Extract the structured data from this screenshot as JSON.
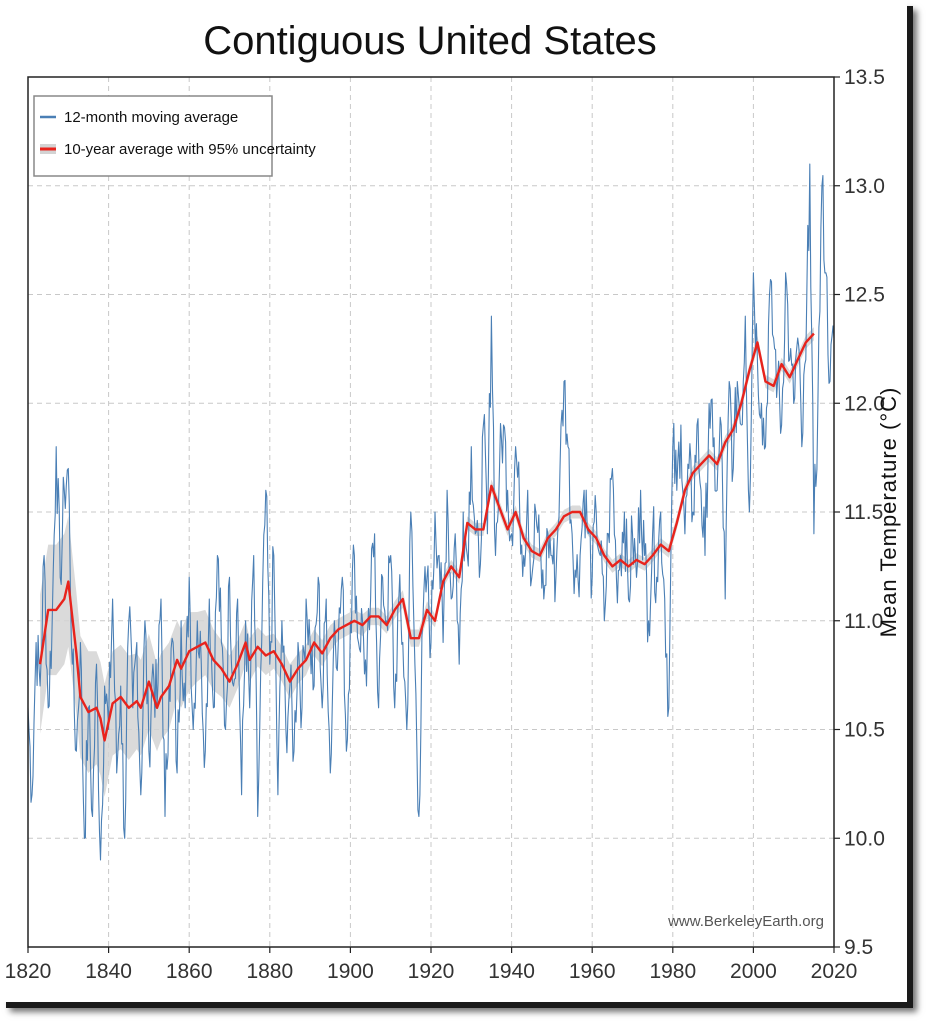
{
  "chart_data": {
    "type": "line",
    "title": "Contiguous United States",
    "xlabel": "",
    "ylabel": "Mean Temperature (°C)",
    "xlim": [
      1820,
      2020
    ],
    "ylim": [
      9.5,
      13.5
    ],
    "x_ticks": [
      1820,
      1840,
      1860,
      1880,
      1900,
      1920,
      1940,
      1960,
      1980,
      2000,
      2020
    ],
    "y_ticks": [
      "9.5",
      "10.0",
      "10.5",
      "11.0",
      "11.5",
      "12.0",
      "12.5",
      "13.0",
      "13.5"
    ],
    "y_axis_side": "right",
    "grid": true,
    "legend_position": "top-left",
    "credit": "www.BerkeleyEarth.org",
    "colors": {
      "moving_average": "#4a7fb5",
      "ten_year": "#e8231c",
      "uncertainty": "#d3d3d3"
    },
    "series": [
      {
        "name": "12-month moving average",
        "style": "thin-line",
        "x": [
          1820,
          1821,
          1822,
          1823,
          1824,
          1825,
          1826,
          1827,
          1828,
          1829,
          1830,
          1831,
          1832,
          1833,
          1834,
          1835,
          1836,
          1837,
          1838,
          1839,
          1840,
          1841,
          1842,
          1843,
          1844,
          1845,
          1846,
          1847,
          1848,
          1849,
          1850,
          1851,
          1852,
          1853,
          1854,
          1855,
          1856,
          1857,
          1858,
          1859,
          1860,
          1861,
          1862,
          1863,
          1864,
          1865,
          1866,
          1867,
          1868,
          1869,
          1870,
          1871,
          1872,
          1873,
          1874,
          1875,
          1876,
          1877,
          1878,
          1879,
          1880,
          1881,
          1882,
          1883,
          1884,
          1885,
          1886,
          1887,
          1888,
          1889,
          1890,
          1891,
          1892,
          1893,
          1894,
          1895,
          1896,
          1897,
          1898,
          1899,
          1900,
          1901,
          1902,
          1903,
          1904,
          1905,
          1906,
          1907,
          1908,
          1909,
          1910,
          1911,
          1912,
          1913,
          1914,
          1915,
          1916,
          1917,
          1918,
          1919,
          1920,
          1921,
          1922,
          1923,
          1924,
          1925,
          1926,
          1927,
          1928,
          1929,
          1930,
          1931,
          1932,
          1933,
          1934,
          1935,
          1936,
          1937,
          1938,
          1939,
          1940,
          1941,
          1942,
          1943,
          1944,
          1945,
          1946,
          1947,
          1948,
          1949,
          1950,
          1951,
          1952,
          1953,
          1954,
          1955,
          1956,
          1957,
          1958,
          1959,
          1960,
          1961,
          1962,
          1963,
          1964,
          1965,
          1966,
          1967,
          1968,
          1969,
          1970,
          1971,
          1972,
          1973,
          1974,
          1975,
          1976,
          1977,
          1978,
          1979,
          1980,
          1981,
          1982,
          1983,
          1984,
          1985,
          1986,
          1987,
          1988,
          1989,
          1990,
          1991,
          1992,
          1993,
          1994,
          1995,
          1996,
          1997,
          1998,
          1999,
          2000,
          2001,
          2002,
          2003,
          2004,
          2005,
          2006,
          2007,
          2008,
          2009,
          2010,
          2011,
          2012,
          2013,
          2014,
          2015,
          2016,
          2017,
          2018,
          2019,
          2020
        ],
        "values": [
          10.6,
          10.2,
          10.9,
          10.7,
          11.3,
          10.6,
          11.0,
          11.8,
          11.2,
          11.6,
          11.7,
          10.8,
          10.4,
          10.9,
          10.0,
          10.6,
          10.1,
          10.8,
          9.9,
          10.7,
          10.5,
          11.1,
          10.3,
          10.7,
          10.0,
          11.0,
          10.6,
          10.9,
          10.2,
          11.0,
          10.4,
          10.8,
          10.6,
          11.1,
          10.1,
          10.7,
          10.9,
          10.3,
          11.0,
          10.6,
          11.2,
          10.5,
          11.0,
          10.8,
          10.4,
          11.1,
          10.6,
          11.3,
          10.9,
          10.5,
          11.2,
          10.7,
          11.1,
          10.2,
          11.0,
          10.6,
          11.3,
          10.1,
          10.9,
          11.6,
          10.8,
          11.3,
          10.2,
          11.0,
          10.5,
          10.7,
          10.4,
          10.9,
          10.6,
          11.1,
          10.9,
          10.7,
          11.2,
          10.6,
          11.1,
          10.3,
          11.0,
          10.9,
          11.2,
          10.4,
          11.0,
          11.3,
          10.9,
          11.0,
          10.7,
          11.1,
          11.4,
          10.6,
          11.2,
          11.0,
          11.3,
          10.6,
          11.1,
          10.9,
          10.5,
          11.5,
          10.8,
          10.1,
          11.0,
          11.2,
          10.9,
          11.5,
          11.3,
          10.9,
          11.6,
          11.1,
          11.4,
          10.8,
          11.5,
          11.3,
          11.8,
          11.4,
          11.2,
          11.9,
          11.4,
          12.4,
          11.3,
          11.7,
          11.9,
          11.6,
          11.4,
          11.8,
          11.5,
          11.3,
          11.6,
          11.2,
          11.5,
          11.3,
          11.1,
          11.4,
          11.3,
          11.2,
          11.7,
          12.1,
          11.8,
          11.4,
          11.2,
          11.3,
          11.6,
          11.4,
          11.2,
          11.5,
          11.3,
          11.0,
          11.4,
          11.7,
          11.2,
          11.3,
          11.5,
          11.1,
          11.4,
          11.2,
          11.6,
          11.3,
          11.0,
          11.4,
          11.2,
          11.5,
          11.1,
          10.6,
          11.8,
          11.6,
          11.9,
          11.4,
          11.7,
          11.5,
          11.9,
          11.6,
          11.3,
          12.0,
          11.8,
          11.6,
          11.9,
          11.1,
          12.1,
          11.7,
          12.1,
          11.9,
          12.4,
          11.5,
          12.6,
          12.2,
          12.0,
          11.8,
          12.5,
          12.3,
          12.1,
          11.9,
          12.6,
          12.2,
          12.0,
          12.3,
          11.8,
          12.2,
          13.1,
          11.4,
          12.0,
          13.0,
          12.6,
          12.1,
          12.3
        ]
      },
      {
        "name": "10-year average with 95% uncertainty",
        "style": "thick-line-with-band",
        "x": [
          1823,
          1825,
          1827,
          1829,
          1830,
          1832,
          1833,
          1835,
          1837,
          1838,
          1839,
          1841,
          1843,
          1845,
          1847,
          1848,
          1850,
          1852,
          1853,
          1855,
          1857,
          1858,
          1860,
          1862,
          1864,
          1866,
          1868,
          1870,
          1872,
          1874,
          1875,
          1877,
          1879,
          1881,
          1883,
          1885,
          1887,
          1889,
          1891,
          1893,
          1895,
          1897,
          1899,
          1901,
          1903,
          1905,
          1907,
          1909,
          1911,
          1913,
          1915,
          1917,
          1919,
          1921,
          1923,
          1925,
          1927,
          1929,
          1931,
          1933,
          1935,
          1937,
          1939,
          1941,
          1943,
          1945,
          1947,
          1949,
          1951,
          1953,
          1955,
          1957,
          1959,
          1961,
          1963,
          1965,
          1967,
          1969,
          1971,
          1973,
          1975,
          1977,
          1979,
          1981,
          1983,
          1985,
          1987,
          1989,
          1991,
          1993,
          1995,
          1997,
          1999,
          2001,
          2003,
          2005,
          2007,
          2009,
          2011,
          2013,
          2015
        ],
        "values": [
          10.8,
          11.05,
          11.05,
          11.1,
          11.18,
          10.85,
          10.65,
          10.58,
          10.6,
          10.55,
          10.45,
          10.62,
          10.65,
          10.6,
          10.63,
          10.6,
          10.72,
          10.6,
          10.65,
          10.7,
          10.82,
          10.78,
          10.86,
          10.88,
          10.9,
          10.82,
          10.78,
          10.72,
          10.8,
          10.9,
          10.82,
          10.88,
          10.84,
          10.86,
          10.8,
          10.72,
          10.78,
          10.82,
          10.9,
          10.85,
          10.92,
          10.96,
          10.98,
          11.0,
          10.98,
          11.02,
          11.02,
          10.98,
          11.05,
          11.1,
          10.92,
          10.92,
          11.05,
          11.0,
          11.18,
          11.25,
          11.2,
          11.45,
          11.42,
          11.42,
          11.62,
          11.52,
          11.42,
          11.5,
          11.38,
          11.32,
          11.3,
          11.38,
          11.42,
          11.48,
          11.5,
          11.5,
          11.42,
          11.38,
          11.3,
          11.25,
          11.28,
          11.25,
          11.28,
          11.26,
          11.3,
          11.35,
          11.32,
          11.45,
          11.6,
          11.68,
          11.72,
          11.76,
          11.72,
          11.82,
          11.88,
          12.0,
          12.15,
          12.28,
          12.1,
          12.08,
          12.18,
          12.12,
          12.2,
          12.28,
          12.32
        ],
        "uncertainty": [
          0.32,
          0.3,
          0.3,
          0.3,
          0.3,
          0.28,
          0.28,
          0.28,
          0.26,
          0.26,
          0.26,
          0.24,
          0.24,
          0.24,
          0.22,
          0.22,
          0.22,
          0.2,
          0.2,
          0.2,
          0.18,
          0.18,
          0.18,
          0.16,
          0.15,
          0.14,
          0.13,
          0.12,
          0.11,
          0.1,
          0.1,
          0.09,
          0.09,
          0.08,
          0.08,
          0.08,
          0.07,
          0.07,
          0.06,
          0.06,
          0.06,
          0.05,
          0.05,
          0.05,
          0.05,
          0.04,
          0.04,
          0.04,
          0.04,
          0.04,
          0.04,
          0.04,
          0.04,
          0.03,
          0.03,
          0.03,
          0.03,
          0.03,
          0.03,
          0.03,
          0.03,
          0.03,
          0.03,
          0.03,
          0.03,
          0.03,
          0.03,
          0.03,
          0.03,
          0.03,
          0.03,
          0.03,
          0.03,
          0.03,
          0.03,
          0.03,
          0.03,
          0.03,
          0.03,
          0.03,
          0.03,
          0.03,
          0.03,
          0.03,
          0.03,
          0.03,
          0.03,
          0.03,
          0.03,
          0.03,
          0.03,
          0.03,
          0.03,
          0.03,
          0.03,
          0.03,
          0.03,
          0.03,
          0.03,
          0.03,
          0.03
        ]
      }
    ]
  }
}
